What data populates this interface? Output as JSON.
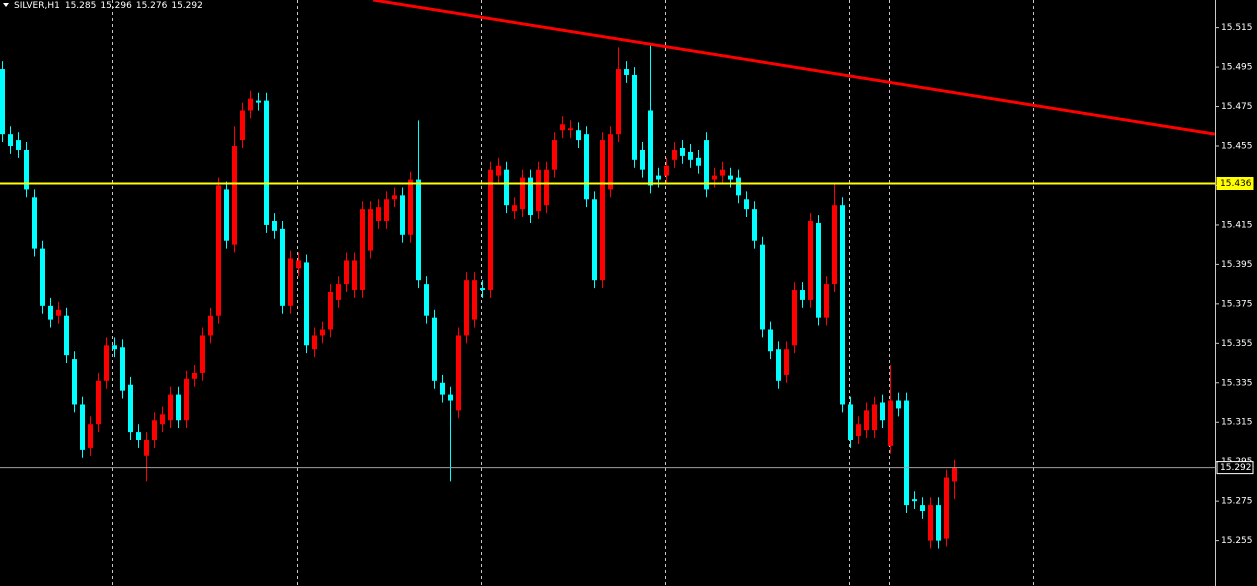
{
  "chart_data": {
    "type": "candlestick",
    "symbol": "SILVER,H1",
    "ohlc": [
      15.285,
      15.296,
      15.276,
      15.292
    ],
    "up_color": "#ff0000",
    "down_color": "#00ffff",
    "ylim": [
      15.232,
      15.529
    ],
    "yticks": [
      15.515,
      15.495,
      15.475,
      15.455,
      15.435,
      15.415,
      15.395,
      15.375,
      15.355,
      15.335,
      15.315,
      15.295,
      15.275,
      15.255
    ],
    "open": [
      15.494,
      15.461,
      15.458,
      15.453,
      15.429,
      15.403,
      15.374,
      15.369,
      15.369,
      15.347,
      15.324,
      15.302,
      15.314,
      15.336,
      15.354,
      15.353,
      15.334,
      15.31,
      15.298,
      15.306,
      15.314,
      15.316,
      15.329,
      15.316,
      15.337,
      15.34,
      15.359,
      15.369,
      15.433,
      15.405,
      15.458,
      15.473,
      15.478,
      15.478,
      15.417,
      15.413,
      15.374,
      15.393,
      15.396,
      15.352,
      15.359,
      15.362,
      15.377,
      15.385,
      15.382,
      15.382,
      15.402,
      15.417,
      15.417,
      15.428,
      15.43,
      15.41,
      15.438,
      15.385,
      15.368,
      15.335,
      15.329,
      15.321,
      15.359,
      15.367,
      15.383,
      15.382,
      15.44,
      15.443,
      15.422,
      15.423,
      15.439,
      15.422,
      15.425,
      15.443,
      15.463,
      15.463,
      15.463,
      15.461,
      15.428,
      15.387,
      15.433,
      15.461,
      15.494,
      15.491,
      15.453,
      15.473,
      15.44,
      15.44,
      15.448,
      15.454,
      15.452,
      15.449,
      15.458,
      15.438,
      15.44,
      15.44,
      15.439,
      15.428,
      15.423,
      15.405,
      15.362,
      15.352,
      15.339,
      15.354,
      15.382,
      15.377,
      15.416,
      15.368,
      15.385,
      15.425,
      15.324,
      15.308,
      15.311,
      15.311,
      15.325,
      15.303,
      15.326,
      15.326,
      15.276,
      15.273,
      15.255,
      15.273,
      15.256,
      15.285
    ],
    "high": [
      15.498,
      15.465,
      15.462,
      15.457,
      15.433,
      15.407,
      15.378,
      15.376,
      15.373,
      15.351,
      15.328,
      15.318,
      15.34,
      15.358,
      15.358,
      15.357,
      15.338,
      15.314,
      15.31,
      15.32,
      15.323,
      15.333,
      15.333,
      15.341,
      15.344,
      15.363,
      15.373,
      15.439,
      15.437,
      15.465,
      15.477,
      15.483,
      15.482,
      15.482,
      15.421,
      15.417,
      15.402,
      15.401,
      15.4,
      15.363,
      15.366,
      15.385,
      15.389,
      15.401,
      15.401,
      15.427,
      15.427,
      15.428,
      15.432,
      15.434,
      15.434,
      15.442,
      15.468,
      15.389,
      15.372,
      15.339,
      15.333,
      15.363,
      15.391,
      15.391,
      15.387,
      15.447,
      15.449,
      15.447,
      15.429,
      15.443,
      15.443,
      15.447,
      15.447,
      15.462,
      15.47,
      15.468,
      15.467,
      15.465,
      15.432,
      15.462,
      15.465,
      15.505,
      15.498,
      15.495,
      15.457,
      15.506,
      15.444,
      15.449,
      15.457,
      15.458,
      15.456,
      15.453,
      15.462,
      15.444,
      15.447,
      15.444,
      15.443,
      15.432,
      15.427,
      15.409,
      15.366,
      15.356,
      15.356,
      15.386,
      15.386,
      15.421,
      15.42,
      15.389,
      15.436,
      15.429,
      15.328,
      15.318,
      15.325,
      15.328,
      15.329,
      15.344,
      15.33,
      15.33,
      15.28,
      15.277,
      15.277,
      15.277,
      15.291,
      15.296
    ],
    "low": [
      15.457,
      15.451,
      15.449,
      15.429,
      15.399,
      15.37,
      15.363,
      15.365,
      15.345,
      15.32,
      15.297,
      15.298,
      15.31,
      15.332,
      15.348,
      15.327,
      15.306,
      15.302,
      15.285,
      15.302,
      15.31,
      15.312,
      15.312,
      15.312,
      15.333,
      15.336,
      15.355,
      15.365,
      15.403,
      15.401,
      15.454,
      15.469,
      15.473,
      15.411,
      15.408,
      15.37,
      15.37,
      15.389,
      15.35,
      15.348,
      15.355,
      15.358,
      15.373,
      15.381,
      15.378,
      15.378,
      15.398,
      15.413,
      15.413,
      15.424,
      15.406,
      15.406,
      15.383,
      15.365,
      15.332,
      15.325,
      15.285,
      15.317,
      15.355,
      15.363,
      15.378,
      15.378,
      15.436,
      15.421,
      15.418,
      15.419,
      15.416,
      15.418,
      15.421,
      15.439,
      15.459,
      15.459,
      15.454,
      15.424,
      15.383,
      15.383,
      15.429,
      15.457,
      15.487,
      15.444,
      15.439,
      15.431,
      15.434,
      15.436,
      15.444,
      15.446,
      15.444,
      15.441,
      15.429,
      15.434,
      15.436,
      15.434,
      15.426,
      15.419,
      15.403,
      15.358,
      15.347,
      15.332,
      15.335,
      15.35,
      15.373,
      15.373,
      15.364,
      15.364,
      15.381,
      15.32,
      15.302,
      15.304,
      15.307,
      15.307,
      15.312,
      15.299,
      15.318,
      15.269,
      15.271,
      15.266,
      15.251,
      15.251,
      15.252,
      15.276
    ],
    "close": [
      15.461,
      15.455,
      15.453,
      15.433,
      15.403,
      15.374,
      15.367,
      15.372,
      15.349,
      15.324,
      15.301,
      15.314,
      15.336,
      15.354,
      15.352,
      15.331,
      15.31,
      15.306,
      15.306,
      15.316,
      15.319,
      15.329,
      15.316,
      15.337,
      15.34,
      15.359,
      15.369,
      15.435,
      15.407,
      15.455,
      15.473,
      15.479,
      15.477,
      15.415,
      15.412,
      15.374,
      15.398,
      15.397,
      15.354,
      15.359,
      15.362,
      15.381,
      15.385,
      15.397,
      15.397,
      15.423,
      15.423,
      15.424,
      15.428,
      15.43,
      15.41,
      15.438,
      15.387,
      15.369,
      15.336,
      15.329,
      15.326,
      15.359,
      15.387,
      15.387,
      15.382,
      15.443,
      15.445,
      15.425,
      15.425,
      15.439,
      15.42,
      15.443,
      15.443,
      15.458,
      15.466,
      15.464,
      15.458,
      15.428,
      15.387,
      15.458,
      15.461,
      15.494,
      15.491,
      15.448,
      15.443,
      15.435,
      15.438,
      15.445,
      15.453,
      15.45,
      15.448,
      15.445,
      15.433,
      15.44,
      15.443,
      15.438,
      15.43,
      15.423,
      15.407,
      15.362,
      15.351,
      15.336,
      15.352,
      15.382,
      15.377,
      15.417,
      15.368,
      15.385,
      15.425,
      15.324,
      15.306,
      15.314,
      15.321,
      15.324,
      15.316,
      15.326,
      15.322,
      15.273,
      15.275,
      15.27,
      15.273,
      15.255,
      15.287,
      15.292
    ],
    "hlines": [
      {
        "value": 15.436,
        "color": "#ffff00"
      },
      {
        "value": 15.292,
        "color": "#a0a0a0"
      }
    ],
    "trendline": {
      "x": [
        46.4,
        151.6
      ],
      "y": [
        15.529,
        15.461
      ],
      "color": "#ff0000"
    }
  }
}
